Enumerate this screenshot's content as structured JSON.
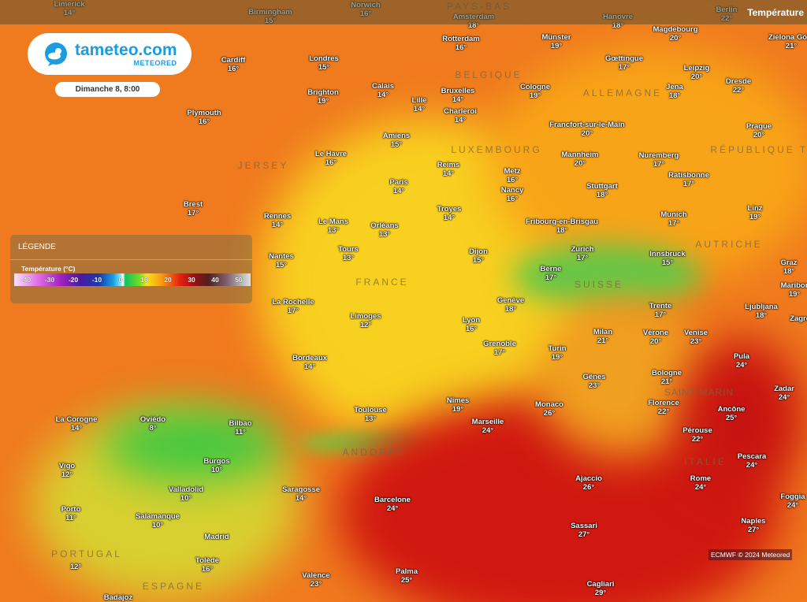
{
  "header": {
    "title": "Température"
  },
  "brand": {
    "name": "tameteo.com",
    "sub": "METEORED",
    "icon": "cloud-sun-chat-icon",
    "color": "#1a9de0"
  },
  "datetime": "Dimanche 8, 8:00",
  "legend": {
    "heading": "LÉGENDE",
    "title": "Température (°C)",
    "ticks": [
      "-40",
      "-30",
      "-20",
      "-10",
      "0",
      "10",
      "20",
      "30",
      "40",
      "50"
    ]
  },
  "credit": "ECMWF © 2024 Meteored",
  "countries": [
    "FRANCE",
    "ALLEMAGNE",
    "BELGIQUE",
    "LUXEMBOURG",
    "SUISSE",
    "AUTRICHE",
    "ITALIE",
    "ESPAGNE",
    "PORTUGAL",
    "PAYS-BAS",
    "RÉPUBLIQUE TCH",
    "SAINT-MARIN",
    "ANDORRE",
    "JERSEY"
  ],
  "cities": [
    {
      "name": "Limerick",
      "temp": "14°"
    },
    {
      "name": "Birmingham",
      "temp": "15°"
    },
    {
      "name": "Norwich",
      "temp": "16°"
    },
    {
      "name": "Amsterdam",
      "temp": "18°"
    },
    {
      "name": "Hanovre",
      "temp": "18°"
    },
    {
      "name": "Berlin",
      "temp": "22°"
    },
    {
      "name": "Rotterdam",
      "temp": "16°"
    },
    {
      "name": "Münster",
      "temp": "19°"
    },
    {
      "name": "Magdebourg",
      "temp": "20°"
    },
    {
      "name": "Zielona Góra",
      "temp": "21°"
    },
    {
      "name": "Cardiff",
      "temp": "16°"
    },
    {
      "name": "Londres",
      "temp": "15°"
    },
    {
      "name": "Gœttingue",
      "temp": "17°"
    },
    {
      "name": "Leipzig",
      "temp": "20°"
    },
    {
      "name": "Calais",
      "temp": "14°"
    },
    {
      "name": "Bruxelles",
      "temp": "14°"
    },
    {
      "name": "Cologne",
      "temp": "19°"
    },
    {
      "name": "Jena",
      "temp": "18°"
    },
    {
      "name": "Dresde",
      "temp": "22°"
    },
    {
      "name": "Brighton",
      "temp": "19°"
    },
    {
      "name": "Lille",
      "temp": "14°"
    },
    {
      "name": "Charleroi",
      "temp": "14°"
    },
    {
      "name": "Plymouth",
      "temp": "16°"
    },
    {
      "name": "Francfort-sur-le-Main",
      "temp": "20°"
    },
    {
      "name": "Prague",
      "temp": "20°"
    },
    {
      "name": "Amiens",
      "temp": "15°"
    },
    {
      "name": "Le Havre",
      "temp": "16°"
    },
    {
      "name": "Mannheim",
      "temp": "20°"
    },
    {
      "name": "Nuremberg",
      "temp": "17°"
    },
    {
      "name": "Reims",
      "temp": "14°"
    },
    {
      "name": "Metz",
      "temp": "16°"
    },
    {
      "name": "Ratisbonne",
      "temp": "17°"
    },
    {
      "name": "Paris",
      "temp": "14°"
    },
    {
      "name": "Stuttgart",
      "temp": "18°"
    },
    {
      "name": "Nancy",
      "temp": "16°"
    },
    {
      "name": "Brest",
      "temp": "17°"
    },
    {
      "name": "Troyes",
      "temp": "14°"
    },
    {
      "name": "Linz",
      "temp": "19°"
    },
    {
      "name": "Rennes",
      "temp": "14°"
    },
    {
      "name": "Le Mans",
      "temp": "13°"
    },
    {
      "name": "Orléans",
      "temp": "13°"
    },
    {
      "name": "Fribourg-en-Brisgau",
      "temp": "18°"
    },
    {
      "name": "Munich",
      "temp": "17°"
    },
    {
      "name": "Zurich",
      "temp": "17°"
    },
    {
      "name": "Innsbruck",
      "temp": "15°"
    },
    {
      "name": "Tours",
      "temp": "13°"
    },
    {
      "name": "Dijon",
      "temp": "15°"
    },
    {
      "name": "Nantes",
      "temp": "15°"
    },
    {
      "name": "Graz",
      "temp": "18°"
    },
    {
      "name": "Berne",
      "temp": "17°"
    },
    {
      "name": "Maribor",
      "temp": "19°"
    },
    {
      "name": "La Rochelle",
      "temp": "17°"
    },
    {
      "name": "Genève",
      "temp": "18°"
    },
    {
      "name": "Lyon",
      "temp": "16°"
    },
    {
      "name": "Limoges",
      "temp": "12°"
    },
    {
      "name": "Trente",
      "temp": "17°"
    },
    {
      "name": "Ljubljana",
      "temp": "18°"
    },
    {
      "name": "Zagreb",
      "temp": ""
    },
    {
      "name": "Milan",
      "temp": "21°"
    },
    {
      "name": "Vérone",
      "temp": "20°"
    },
    {
      "name": "Venise",
      "temp": "23°"
    },
    {
      "name": "Grenoble",
      "temp": "17°"
    },
    {
      "name": "Turin",
      "temp": "19°"
    },
    {
      "name": "Bordeaux",
      "temp": "14°"
    },
    {
      "name": "Pula",
      "temp": "24°"
    },
    {
      "name": "Bologne",
      "temp": "21°"
    },
    {
      "name": "Gênes",
      "temp": "23°"
    },
    {
      "name": "Zadar",
      "temp": "24°"
    },
    {
      "name": "Nîmes",
      "temp": "19°"
    },
    {
      "name": "Monaco",
      "temp": "26°"
    },
    {
      "name": "Florence",
      "temp": "22°"
    },
    {
      "name": "Ancône",
      "temp": "25°"
    },
    {
      "name": "Toulouse",
      "temp": "13°"
    },
    {
      "name": "La Corogne",
      "temp": "14°"
    },
    {
      "name": "Oviédo",
      "temp": "8°"
    },
    {
      "name": "Bilbao",
      "temp": "11°"
    },
    {
      "name": "Marseille",
      "temp": "24°"
    },
    {
      "name": "Pérouse",
      "temp": "22°"
    },
    {
      "name": "Burgos",
      "temp": "10°"
    },
    {
      "name": "Pescara",
      "temp": "24°"
    },
    {
      "name": "Vigo",
      "temp": "12°"
    },
    {
      "name": "Ajaccio",
      "temp": "26°"
    },
    {
      "name": "Rome",
      "temp": "24°"
    },
    {
      "name": "Valladolid",
      "temp": "10°"
    },
    {
      "name": "Saragosse",
      "temp": "14°"
    },
    {
      "name": "Barcelone",
      "temp": "24°"
    },
    {
      "name": "Foggia",
      "temp": "24°"
    },
    {
      "name": "Porto",
      "temp": "11°"
    },
    {
      "name": "Salamanque",
      "temp": "10°"
    },
    {
      "name": "Madrid",
      "temp": ""
    },
    {
      "name": "Naples",
      "temp": "27°"
    },
    {
      "name": "Sassari",
      "temp": "27°"
    },
    {
      "name": "Tolède",
      "temp": "16°"
    },
    {
      "name": "Valence",
      "temp": "23°"
    },
    {
      "name": "Palma",
      "temp": "25°"
    },
    {
      "name": "Cagliari",
      "temp": "29°"
    },
    {
      "name": "Badajoz",
      "temp": ""
    },
    {
      "name": "",
      "temp": "12°"
    }
  ]
}
